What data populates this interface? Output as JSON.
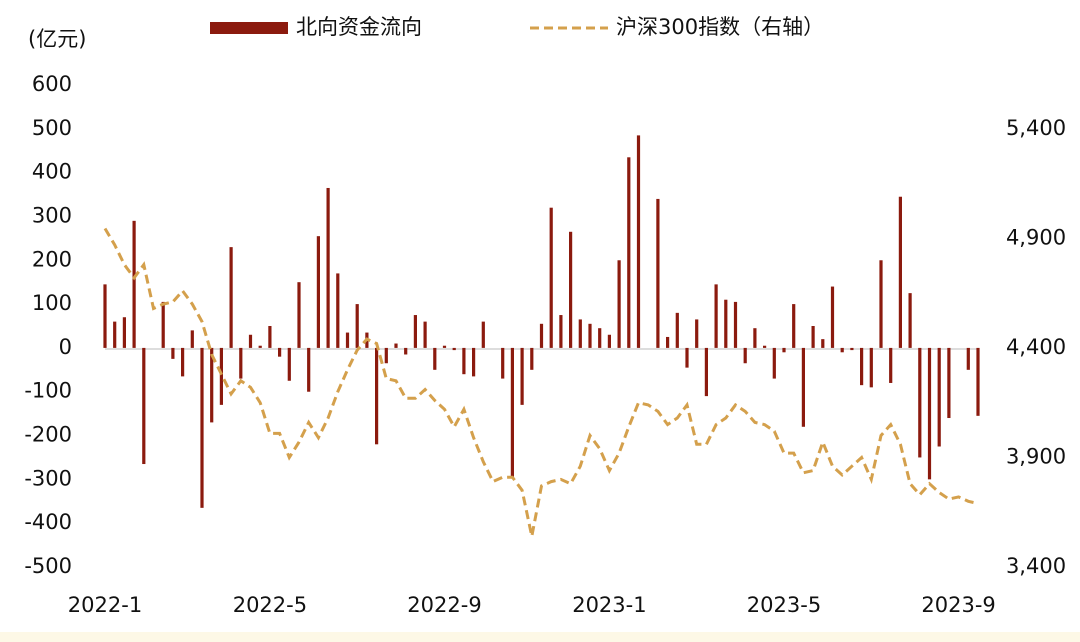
{
  "chart_data": {
    "type": "combo",
    "y_unit_label": "(亿元)",
    "categories": [
      "2022-1",
      null,
      null,
      null,
      null,
      null,
      null,
      null,
      null,
      null,
      null,
      null,
      null,
      null,
      null,
      null,
      null,
      "2022-5",
      null,
      null,
      null,
      null,
      null,
      null,
      null,
      null,
      null,
      null,
      null,
      null,
      null,
      null,
      null,
      null,
      null,
      "2022-9",
      null,
      null,
      null,
      null,
      null,
      null,
      null,
      null,
      null,
      null,
      null,
      null,
      null,
      null,
      null,
      null,
      "2023-1",
      null,
      null,
      null,
      null,
      null,
      null,
      null,
      null,
      null,
      null,
      null,
      null,
      null,
      null,
      null,
      null,
      null,
      "2023-5",
      null,
      null,
      null,
      null,
      null,
      null,
      null,
      null,
      null,
      null,
      null,
      null,
      null,
      null,
      null,
      null,
      null,
      "2023-9",
      null,
      null
    ],
    "series": [
      {
        "name": "北向资金流向",
        "type": "bar",
        "color": "#8b1a0e",
        "values": [
          145,
          60,
          70,
          290,
          -265,
          0,
          105,
          -25,
          -65,
          40,
          -365,
          -170,
          -130,
          230,
          -70,
          30,
          5,
          50,
          -20,
          -75,
          150,
          -100,
          255,
          365,
          170,
          35,
          100,
          35,
          -220,
          -35,
          10,
          -15,
          75,
          60,
          -50,
          5,
          -5,
          -60,
          -65,
          60,
          0,
          -70,
          -295,
          -130,
          -50,
          55,
          320,
          75,
          265,
          65,
          55,
          45,
          30,
          200,
          435,
          485,
          0,
          340,
          25,
          80,
          -45,
          65,
          -110,
          145,
          110,
          105,
          -35,
          45,
          5,
          -70,
          -10,
          100,
          -180,
          50,
          20,
          140,
          -10,
          -5,
          -85,
          -90,
          200,
          -80,
          345,
          125,
          -250,
          -300,
          -225,
          -160,
          0,
          -50,
          -155
        ]
      },
      {
        "name": "沪深300指数（右轴）",
        "type": "line",
        "axis": "y2",
        "color": "#d4a04c",
        "dashed": true,
        "values": [
          4945,
          4870,
          4780,
          4720,
          4780,
          4580,
          4600,
          4610,
          4660,
          4600,
          4520,
          4370,
          4280,
          4190,
          4250,
          4220,
          4150,
          4010,
          4010,
          3900,
          3970,
          4060,
          3990,
          4080,
          4200,
          4300,
          4390,
          4440,
          4420,
          4260,
          4250,
          4170,
          4170,
          4210,
          4160,
          4120,
          4040,
          4120,
          3990,
          3880,
          3790,
          3810,
          3810,
          3750,
          3540,
          3770,
          3790,
          3800,
          3780,
          3860,
          4000,
          3940,
          3840,
          3920,
          4040,
          4150,
          4140,
          4110,
          4050,
          4080,
          4140,
          3960,
          3960,
          4050,
          4080,
          4140,
          4110,
          4060,
          4050,
          4020,
          3920,
          3920,
          3830,
          3840,
          3970,
          3860,
          3820,
          3860,
          3900,
          3800,
          4000,
          4050,
          3960,
          3780,
          3730,
          3780,
          3740,
          3710,
          3720,
          3700,
          3690
        ]
      }
    ],
    "ylim": [
      -500,
      600
    ],
    "yticks": [
      -500,
      -400,
      -300,
      -200,
      -100,
      0,
      100,
      200,
      300,
      400,
      500,
      600
    ],
    "y2lim": [
      3400,
      5600
    ],
    "y2ticks": [
      {
        "value": 3400,
        "label": "3,400"
      },
      {
        "value": 3900,
        "label": "3,900"
      },
      {
        "value": 4400,
        "label": "4,400"
      },
      {
        "value": 4900,
        "label": "4,900"
      },
      {
        "value": 5400,
        "label": "5,400"
      }
    ]
  }
}
